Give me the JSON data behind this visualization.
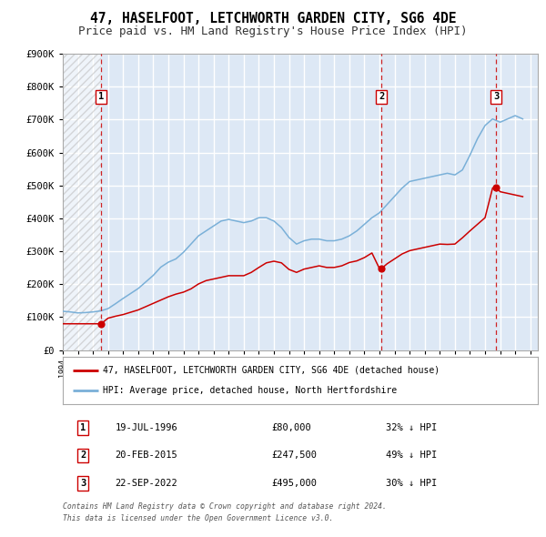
{
  "title": "47, HASELFOOT, LETCHWORTH GARDEN CITY, SG6 4DE",
  "subtitle": "Price paid vs. HM Land Registry's House Price Index (HPI)",
  "ylim": [
    0,
    900000
  ],
  "xlim_start": 1994.0,
  "xlim_end": 2025.5,
  "background_color": "#f5f5f5",
  "plot_bg_color": "#dde8f5",
  "grid_color": "#ffffff",
  "title_fontsize": 10.5,
  "subtitle_fontsize": 9,
  "sale_marker_color": "#cc0000",
  "hpi_line_color": "#7ab0d8",
  "sales_line_color": "#cc0000",
  "vline_color": "#cc0000",
  "sale_dates_decimal": [
    1996.54,
    2015.13,
    2022.73
  ],
  "sale_prices": [
    80000,
    247500,
    495000
  ],
  "sale_labels": [
    "1",
    "2",
    "3"
  ],
  "sale_date_strings": [
    "19-JUL-1996",
    "20-FEB-2015",
    "22-SEP-2022"
  ],
  "sale_hpi_pct": [
    "32%",
    "49%",
    "30%"
  ],
  "legend_label_sales": "47, HASELFOOT, LETCHWORTH GARDEN CITY, SG6 4DE (detached house)",
  "legend_label_hpi": "HPI: Average price, detached house, North Hertfordshire",
  "footnote1": "Contains HM Land Registry data © Crown copyright and database right 2024.",
  "footnote2": "This data is licensed under the Open Government Licence v3.0.",
  "hpi_x": [
    1994.0,
    1994.5,
    1995.0,
    1995.5,
    1996.0,
    1996.5,
    1997.0,
    1997.5,
    1998.0,
    1998.5,
    1999.0,
    1999.5,
    2000.0,
    2000.5,
    2001.0,
    2001.5,
    2002.0,
    2002.5,
    2003.0,
    2003.5,
    2004.0,
    2004.5,
    2005.0,
    2005.5,
    2006.0,
    2006.5,
    2007.0,
    2007.5,
    2008.0,
    2008.5,
    2009.0,
    2009.5,
    2010.0,
    2010.5,
    2011.0,
    2011.5,
    2012.0,
    2012.5,
    2013.0,
    2013.5,
    2014.0,
    2014.5,
    2015.0,
    2015.5,
    2016.0,
    2016.5,
    2017.0,
    2017.5,
    2018.0,
    2018.5,
    2019.0,
    2019.5,
    2020.0,
    2020.5,
    2021.0,
    2021.5,
    2022.0,
    2022.5,
    2023.0,
    2023.5,
    2024.0,
    2024.5
  ],
  "hpi_y": [
    118000,
    116000,
    113000,
    114000,
    116000,
    119000,
    126000,
    141000,
    157000,
    172000,
    187000,
    207000,
    227000,
    252000,
    267000,
    277000,
    297000,
    322000,
    347000,
    362000,
    377000,
    392000,
    397000,
    392000,
    387000,
    392000,
    402000,
    402000,
    392000,
    372000,
    342000,
    322000,
    332000,
    337000,
    337000,
    332000,
    332000,
    337000,
    347000,
    362000,
    382000,
    402000,
    417000,
    442000,
    467000,
    492000,
    512000,
    517000,
    522000,
    527000,
    532000,
    537000,
    532000,
    547000,
    592000,
    642000,
    682000,
    702000,
    692000,
    702000,
    712000,
    702000
  ],
  "sales_line_x": [
    1994.0,
    1994.5,
    1995.0,
    1995.5,
    1996.0,
    1996.54,
    1997.0,
    1997.5,
    1998.0,
    1998.5,
    1999.0,
    1999.5,
    2000.0,
    2000.5,
    2001.0,
    2001.5,
    2002.0,
    2002.5,
    2003.0,
    2003.5,
    2004.0,
    2004.5,
    2005.0,
    2005.5,
    2006.0,
    2006.5,
    2007.0,
    2007.5,
    2008.0,
    2008.5,
    2009.0,
    2009.5,
    2010.0,
    2010.5,
    2011.0,
    2011.5,
    2012.0,
    2012.5,
    2013.0,
    2013.5,
    2014.0,
    2014.5,
    2015.0,
    2015.13,
    2015.5,
    2016.0,
    2016.5,
    2017.0,
    2017.5,
    2018.0,
    2018.5,
    2019.0,
    2019.5,
    2020.0,
    2020.5,
    2021.0,
    2021.5,
    2022.0,
    2022.5,
    2022.73,
    2023.0,
    2023.5,
    2024.0,
    2024.5
  ],
  "sales_line_y": [
    80000,
    80000,
    80000,
    80000,
    80000,
    80000,
    97000,
    103000,
    108000,
    115000,
    122000,
    132000,
    142000,
    152000,
    162000,
    170000,
    176000,
    186000,
    201000,
    211000,
    216000,
    221000,
    226000,
    226000,
    226000,
    236000,
    251000,
    265000,
    270000,
    265000,
    245000,
    236000,
    246000,
    251000,
    256000,
    251000,
    251000,
    256000,
    266000,
    271000,
    281000,
    295000,
    247500,
    247500,
    262000,
    277000,
    292000,
    302000,
    307000,
    312000,
    317000,
    322000,
    321000,
    322000,
    341000,
    362000,
    382000,
    402000,
    492000,
    495000,
    481000,
    476000,
    471000,
    466000
  ]
}
